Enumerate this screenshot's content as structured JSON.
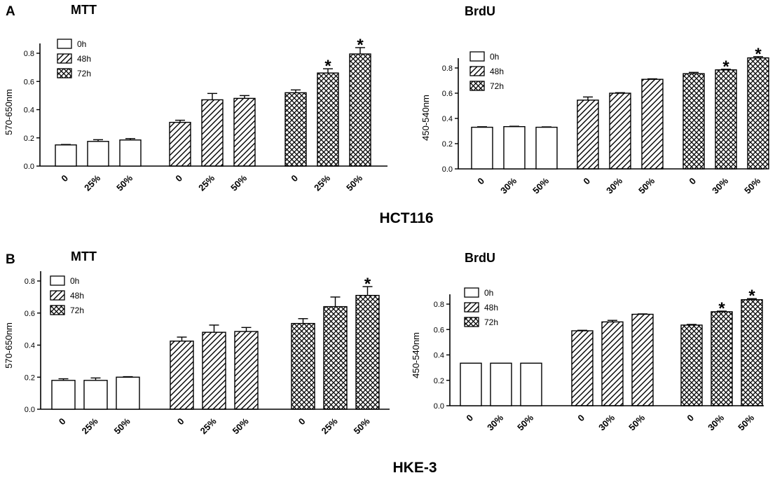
{
  "panels": [
    {
      "letter": "A",
      "cell_line": "HCT116"
    },
    {
      "letter": "B",
      "cell_line": "HKE-3"
    }
  ],
  "colors": {
    "bar_fill": "#ffffff",
    "bar_stroke": "#000000",
    "pattern": "#000000"
  },
  "chart_data": [
    {
      "type": "bar",
      "title": "MTT",
      "ylabel": "570-650nm",
      "xlabel": "",
      "ylim": [
        0,
        0.8
      ],
      "yticks": [
        0.0,
        0.2,
        0.4,
        0.6,
        0.8
      ],
      "groups": [
        {
          "name": "0h",
          "pattern": "plain",
          "categories": [
            "0",
            "25%",
            "50%"
          ],
          "values": [
            0.15,
            0.175,
            0.185
          ],
          "errors": [
            0.003,
            0.012,
            0.01
          ],
          "significant": [
            false,
            false,
            false
          ]
        },
        {
          "name": "48h",
          "pattern": "hatch",
          "categories": [
            "0",
            "25%",
            "50%"
          ],
          "values": [
            0.31,
            0.47,
            0.48
          ],
          "errors": [
            0.015,
            0.045,
            0.02
          ],
          "significant": [
            false,
            false,
            false
          ]
        },
        {
          "name": "72h",
          "pattern": "cross",
          "categories": [
            "0",
            "25%",
            "50%"
          ],
          "values": [
            0.52,
            0.66,
            0.795
          ],
          "errors": [
            0.02,
            0.03,
            0.045
          ],
          "significant": [
            false,
            true,
            true
          ]
        }
      ],
      "legend": [
        "0h",
        "48h",
        "72h"
      ],
      "legend_position": "top-left",
      "significance_marker": "*"
    },
    {
      "type": "bar",
      "title": "BrdU",
      "ylabel": "450-540nm",
      "xlabel": "",
      "ylim": [
        0,
        0.8
      ],
      "yticks": [
        0.0,
        0.2,
        0.4,
        0.6,
        0.8
      ],
      "groups": [
        {
          "name": "0h",
          "pattern": "plain",
          "categories": [
            "0",
            "30%",
            "50%"
          ],
          "values": [
            0.33,
            0.335,
            0.33
          ],
          "errors": [
            0.004,
            0.003,
            0.003
          ],
          "significant": [
            false,
            false,
            false
          ]
        },
        {
          "name": "48h",
          "pattern": "hatch",
          "categories": [
            "0",
            "30%",
            "50%"
          ],
          "values": [
            0.545,
            0.6,
            0.71
          ],
          "errors": [
            0.025,
            0.004,
            0.004
          ],
          "significant": [
            false,
            false,
            false
          ]
        },
        {
          "name": "72h",
          "pattern": "cross",
          "categories": [
            "0",
            "30%",
            "50%"
          ],
          "values": [
            0.755,
            0.785,
            0.88
          ],
          "errors": [
            0.01,
            0.005,
            0.01
          ],
          "significant": [
            false,
            true,
            true
          ]
        }
      ],
      "legend": [
        "0h",
        "48h",
        "72h"
      ],
      "legend_position": "top-left",
      "significance_marker": "*"
    },
    {
      "type": "bar",
      "title": "MTT",
      "ylabel": "570-650nm",
      "xlabel": "",
      "ylim": [
        0,
        0.8
      ],
      "yticks": [
        0.0,
        0.2,
        0.4,
        0.6,
        0.8
      ],
      "groups": [
        {
          "name": "0h",
          "pattern": "plain",
          "categories": [
            "0",
            "25%",
            "50%"
          ],
          "values": [
            0.18,
            0.18,
            0.2
          ],
          "errors": [
            0.01,
            0.015,
            0.003
          ],
          "significant": [
            false,
            false,
            false
          ]
        },
        {
          "name": "48h",
          "pattern": "hatch",
          "categories": [
            "0",
            "25%",
            "50%"
          ],
          "values": [
            0.425,
            0.48,
            0.485
          ],
          "errors": [
            0.025,
            0.045,
            0.025
          ],
          "significant": [
            false,
            false,
            false
          ]
        },
        {
          "name": "72h",
          "pattern": "cross",
          "categories": [
            "0",
            "25%",
            "50%"
          ],
          "values": [
            0.535,
            0.64,
            0.71
          ],
          "errors": [
            0.03,
            0.06,
            0.055
          ],
          "significant": [
            false,
            false,
            true
          ]
        }
      ],
      "legend": [
        "0h",
        "48h",
        "72h"
      ],
      "legend_position": "top-left",
      "significance_marker": "*"
    },
    {
      "type": "bar",
      "title": "BrdU",
      "ylabel": "450-540nm",
      "xlabel": "",
      "ylim": [
        0,
        0.8
      ],
      "yticks": [
        0.0,
        0.2,
        0.4,
        0.6,
        0.8
      ],
      "groups": [
        {
          "name": "0h",
          "pattern": "plain",
          "categories": [
            "0",
            "30%",
            "50%"
          ],
          "values": [
            0.335,
            0.335,
            0.335
          ],
          "errors": [
            0.002,
            0.002,
            0.002
          ],
          "significant": [
            false,
            false,
            false
          ]
        },
        {
          "name": "48h",
          "pattern": "hatch",
          "categories": [
            "0",
            "30%",
            "50%"
          ],
          "values": [
            0.59,
            0.66,
            0.72
          ],
          "errors": [
            0.004,
            0.012,
            0.003
          ],
          "significant": [
            false,
            false,
            false
          ]
        },
        {
          "name": "72h",
          "pattern": "cross",
          "categories": [
            "0",
            "30%",
            "50%"
          ],
          "values": [
            0.635,
            0.74,
            0.835
          ],
          "errors": [
            0.005,
            0.005,
            0.008
          ],
          "significant": [
            false,
            true,
            true
          ]
        }
      ],
      "legend": [
        "0h",
        "48h",
        "72h"
      ],
      "legend_position": "top-left",
      "significance_marker": "*"
    }
  ]
}
